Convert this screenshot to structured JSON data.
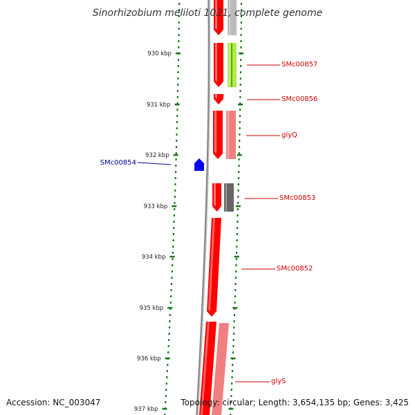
{
  "title": "Sinorhizobium meliloti 1021, complete genome",
  "footer": {
    "accession": "Accession: NC_003047",
    "info": "Topology: circular; Length: 3,654,135 bp; Genes: 3,425"
  },
  "colors": {
    "tick": "#1a7a1a",
    "backbone": "#888888",
    "forward_gene": "#ff0000",
    "reverse_gene": "#0000ff",
    "forward_label": "#cc0000",
    "reverse_label": "#000099"
  },
  "ticks": [
    {
      "label": "930 kbp"
    },
    {
      "label": "931 kbp"
    },
    {
      "label": "932 kbp"
    },
    {
      "label": "933 kbp"
    },
    {
      "label": "934 kbp"
    },
    {
      "label": "935 kbp"
    },
    {
      "label": "936 kbp"
    },
    {
      "label": "937 kbp"
    }
  ],
  "genes": [
    {
      "name": "SMc00857",
      "strand": "forward",
      "product_color": "#aaee44"
    },
    {
      "name": "SMc00856",
      "strand": "forward",
      "product_color": ""
    },
    {
      "name": "glyQ",
      "strand": "forward",
      "product_color": "#f08080"
    },
    {
      "name": "SMc00854",
      "strand": "reverse",
      "product_color": ""
    },
    {
      "name": "SMc00853",
      "strand": "forward",
      "product_color": "#666666"
    },
    {
      "name": "SMc00852",
      "strand": "forward",
      "product_color": ""
    },
    {
      "name": "glyS",
      "strand": "forward",
      "product_color": "#f08080"
    }
  ]
}
